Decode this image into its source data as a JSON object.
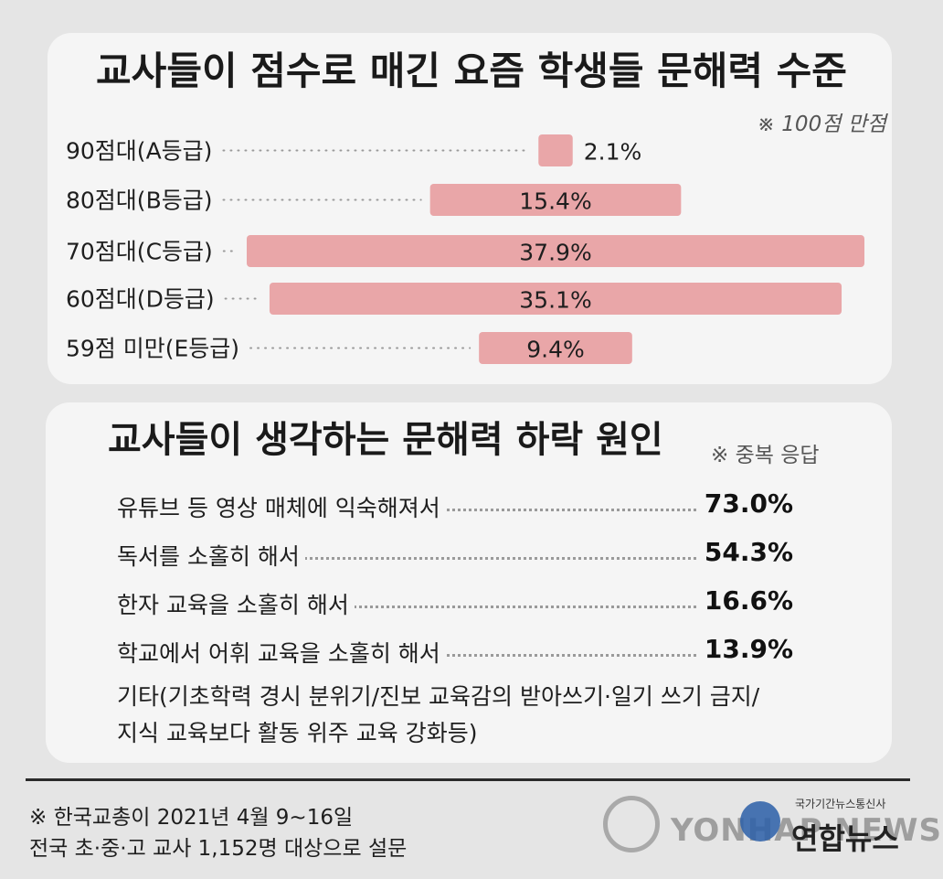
{
  "chart_data": [
    {
      "type": "bar",
      "orientation": "horizontal",
      "title": "교사들이 점수로 매긴 요즘 학생들 문해력 수준",
      "note": "※ 100점 만점",
      "categories": [
        "90점대(A등급)",
        "80점대(B등급)",
        "70점대(C등급)",
        "60점대(D등급)",
        "59점 미만(E등급)"
      ],
      "values": [
        2.1,
        15.4,
        37.9,
        35.1,
        9.4
      ],
      "value_labels": [
        "2.1%",
        "15.4%",
        "37.9%",
        "35.1%",
        "9.4%"
      ],
      "bar_color": "#e9a6a8",
      "xlim": [
        0,
        37.9
      ]
    },
    {
      "type": "table",
      "title": "교사들이 생각하는 문해력 하락 원인",
      "note": "※ 중복 응답",
      "rows": [
        {
          "label": "유튜브 등 영상 매체에 익숙해져서",
          "value": 73.0,
          "value_label": "73.0%"
        },
        {
          "label": "독서를 소홀히 해서",
          "value": 54.3,
          "value_label": "54.3%"
        },
        {
          "label": "한자 교육을 소홀히 해서",
          "value": 16.6,
          "value_label": "16.6%"
        },
        {
          "label": "학교에서 어휘 교육을 소홀히 해서",
          "value": 13.9,
          "value_label": "13.9%"
        }
      ],
      "other_line1": "기타(기초학력 경시 분위기/진보 교육감의 받아쓰기·일기 쓰기 금지/",
      "other_line2": "지식 교육보다 활동 위주 교육 강화등)"
    }
  ],
  "source": {
    "line1": "※ 한국교총이 2021년 4월 9~16일",
    "line2": "전국 초·중·고 교사 1,152명 대상으로 설문"
  },
  "watermark": {
    "text": "YONHAP NEWS",
    "logo_sub": "국가기간뉴스통신사",
    "logo_main": "연합뉴스"
  }
}
